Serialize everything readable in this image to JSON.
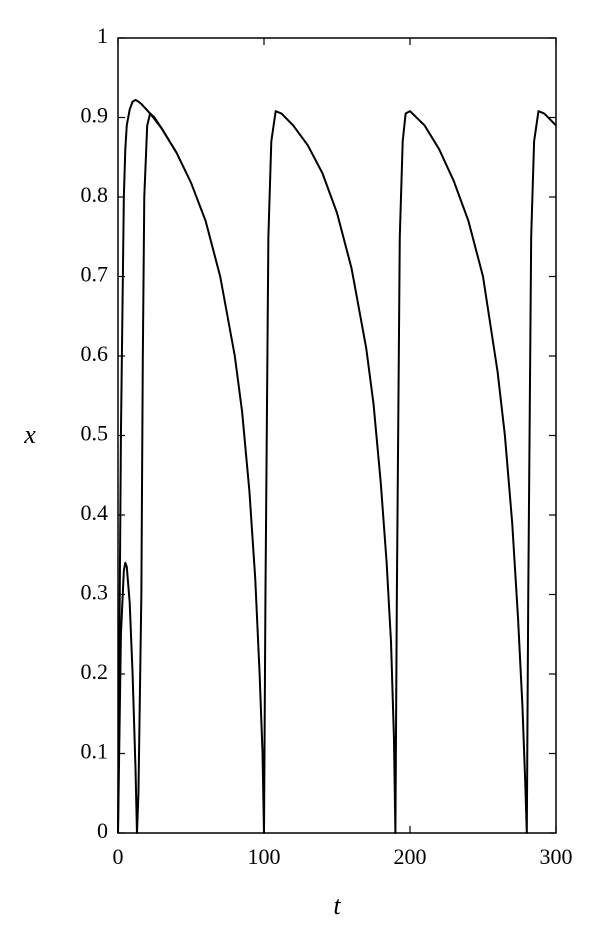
{
  "chart_data": {
    "type": "line",
    "x_label": "t",
    "y_label": "x",
    "x": [
      0,
      2,
      4,
      5,
      6,
      8,
      10,
      12,
      13,
      14,
      16,
      17,
      18,
      20,
      22,
      25,
      30,
      40,
      50,
      60,
      70,
      80,
      85,
      90,
      94,
      97,
      99,
      100,
      101,
      103,
      105,
      108,
      112,
      120,
      130,
      140,
      150,
      160,
      170,
      175,
      180,
      184,
      187,
      189,
      190,
      191,
      193,
      195,
      197,
      200,
      210,
      220,
      230,
      240,
      250,
      260,
      265,
      270,
      274,
      277,
      279,
      280,
      281,
      283,
      285,
      288,
      292,
      300
    ],
    "series": [
      {
        "color": "#000000",
        "values": [
          0,
          0.5,
          0.8,
          0.86,
          0.89,
          0.91,
          0.92,
          0.922,
          0.921,
          0.92,
          0.917,
          0.915,
          0.913,
          0.909,
          0.905,
          0.898,
          0.886,
          0.856,
          0.818,
          0.77,
          0.7,
          0.6,
          0.53,
          0.43,
          0.32,
          0.2,
          0.1,
          0,
          0.3,
          0.75,
          0.87,
          0.908,
          0.905,
          0.89,
          0.865,
          0.83,
          0.78,
          0.71,
          0.61,
          0.54,
          0.44,
          0.34,
          0.24,
          0.12,
          0,
          0.3,
          0.75,
          0.87,
          0.905,
          0.908,
          0.89,
          0.86,
          0.82,
          0.77,
          0.7,
          0.58,
          0.5,
          0.39,
          0.27,
          0.16,
          0.06,
          0,
          0.3,
          0.75,
          0.87,
          0.908,
          0.905,
          0.89
        ]
      },
      {
        "color": "#000000",
        "values": [
          0,
          0.25,
          0.33,
          0.34,
          0.335,
          0.29,
          0.2,
          0.08,
          0,
          0.05,
          0.3,
          0.6,
          0.8,
          0.89,
          0.905,
          0.9,
          0.886,
          0.856,
          null,
          null,
          null,
          null,
          null,
          null,
          null,
          null,
          null,
          null,
          null,
          null,
          null,
          null,
          null,
          null,
          null,
          null,
          null,
          null,
          null,
          null,
          null,
          null,
          null,
          null,
          null,
          null,
          null,
          null,
          null,
          null,
          null,
          null,
          null,
          null,
          null,
          null,
          null,
          null,
          null,
          null,
          null,
          null,
          null,
          null,
          null,
          null,
          null,
          null
        ]
      }
    ],
    "xlim": [
      0,
      300
    ],
    "ylim": [
      0,
      1
    ],
    "xticks": [
      0,
      100,
      200,
      300
    ],
    "yticks": [
      0,
      0.1,
      0.2,
      0.3,
      0.4,
      0.5,
      0.6,
      0.7,
      0.8,
      0.9,
      1
    ]
  }
}
